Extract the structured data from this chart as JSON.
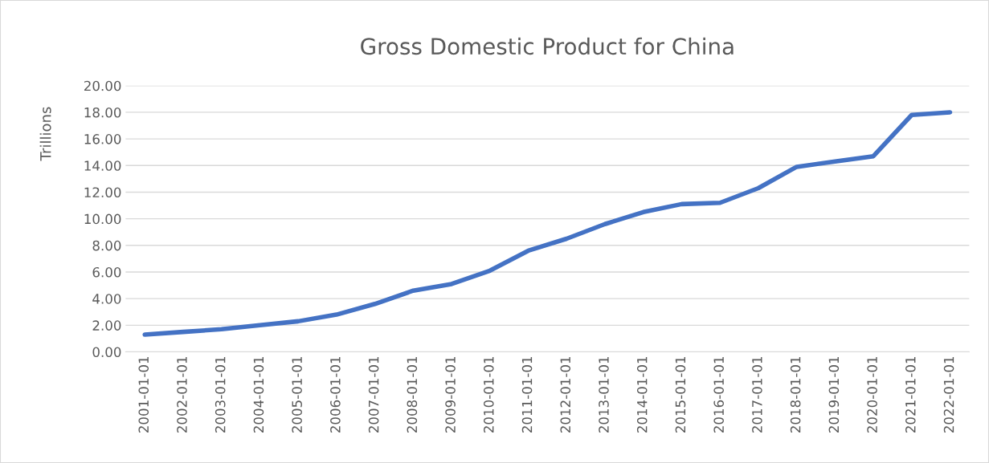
{
  "chart_data": {
    "type": "line",
    "title": "Gross Domestic Product for China",
    "ylabel": "Trillions",
    "categories": [
      "2001-01-01",
      "2002-01-01",
      "2003-01-01",
      "2004-01-01",
      "2005-01-01",
      "2006-01-01",
      "2007-01-01",
      "2008-01-01",
      "2009-01-01",
      "2010-01-01",
      "2011-01-01",
      "2012-01-01",
      "2013-01-01",
      "2014-01-01",
      "2015-01-01",
      "2016-01-01",
      "2017-01-01",
      "2018-01-01",
      "2019-01-01",
      "2020-01-01",
      "2021-01-01",
      "2022-01-01"
    ],
    "series": [
      {
        "color": "#4472c4",
        "values": [
          1.3,
          1.5,
          1.7,
          2.0,
          2.3,
          2.8,
          3.6,
          4.6,
          5.1,
          6.1,
          7.6,
          8.5,
          9.6,
          10.5,
          11.1,
          11.2,
          12.3,
          13.9,
          14.3,
          14.7,
          17.8,
          18.0
        ]
      }
    ],
    "ylim": [
      0,
      20
    ],
    "yticks": [
      {
        "value": 0,
        "label": "0.00"
      },
      {
        "value": 2,
        "label": "2.00"
      },
      {
        "value": 4,
        "label": "4.00"
      },
      {
        "value": 6,
        "label": "6.00"
      },
      {
        "value": 8,
        "label": "8.00"
      },
      {
        "value": 10,
        "label": "10.00"
      },
      {
        "value": 12,
        "label": "12.00"
      },
      {
        "value": 14,
        "label": "14.00"
      },
      {
        "value": 16,
        "label": "16.00"
      },
      {
        "value": 18,
        "label": "18.00"
      },
      {
        "value": 20,
        "label": "20.00"
      }
    ],
    "grid": "y",
    "legend": false,
    "marker": "none",
    "line_style": "solid"
  }
}
